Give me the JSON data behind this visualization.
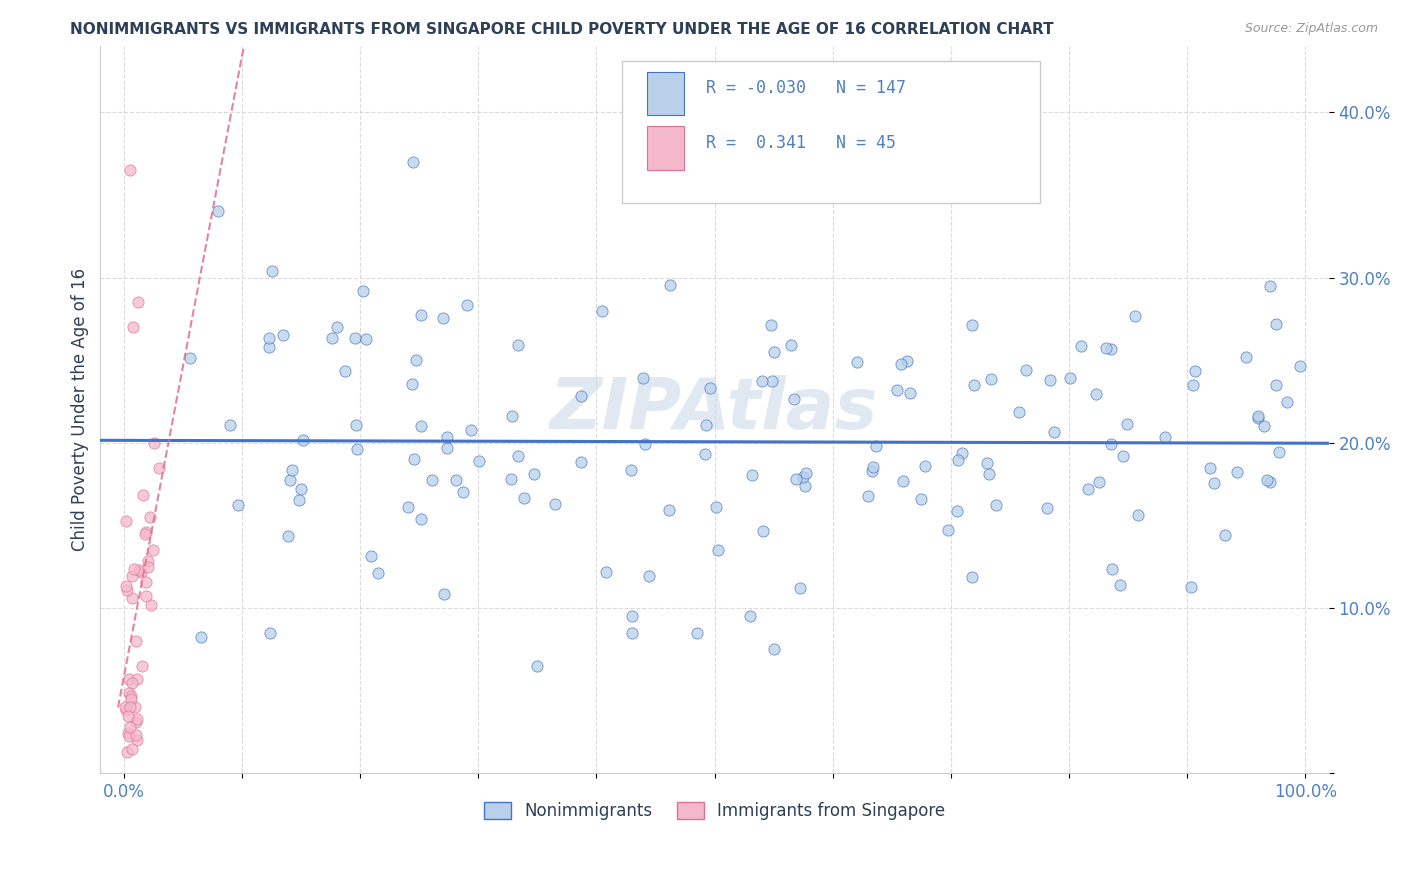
{
  "title": "NONIMMIGRANTS VS IMMIGRANTS FROM SINGAPORE CHILD POVERTY UNDER THE AGE OF 16 CORRELATION CHART",
  "source": "Source: ZipAtlas.com",
  "ylabel": "Child Poverty Under the Age of 16",
  "xlim": [
    -0.02,
    1.02
  ],
  "ylim": [
    0.0,
    0.44
  ],
  "R_nonimm": -0.03,
  "N_nonimm": 147,
  "R_imm": 0.341,
  "N_imm": 45,
  "color_nonimm": "#b8d0ea",
  "color_imm": "#f4b8cc",
  "line_color_nonimm": "#4472c4",
  "line_color_imm": "#e07090",
  "title_color": "#2E4057",
  "label_color": "#5080c0",
  "background_color": "#ffffff",
  "watermark": "ZIPAtlas",
  "legend_label_nonimm": "Nonimmigrants",
  "legend_label_imm": "Immigrants from Singapore"
}
